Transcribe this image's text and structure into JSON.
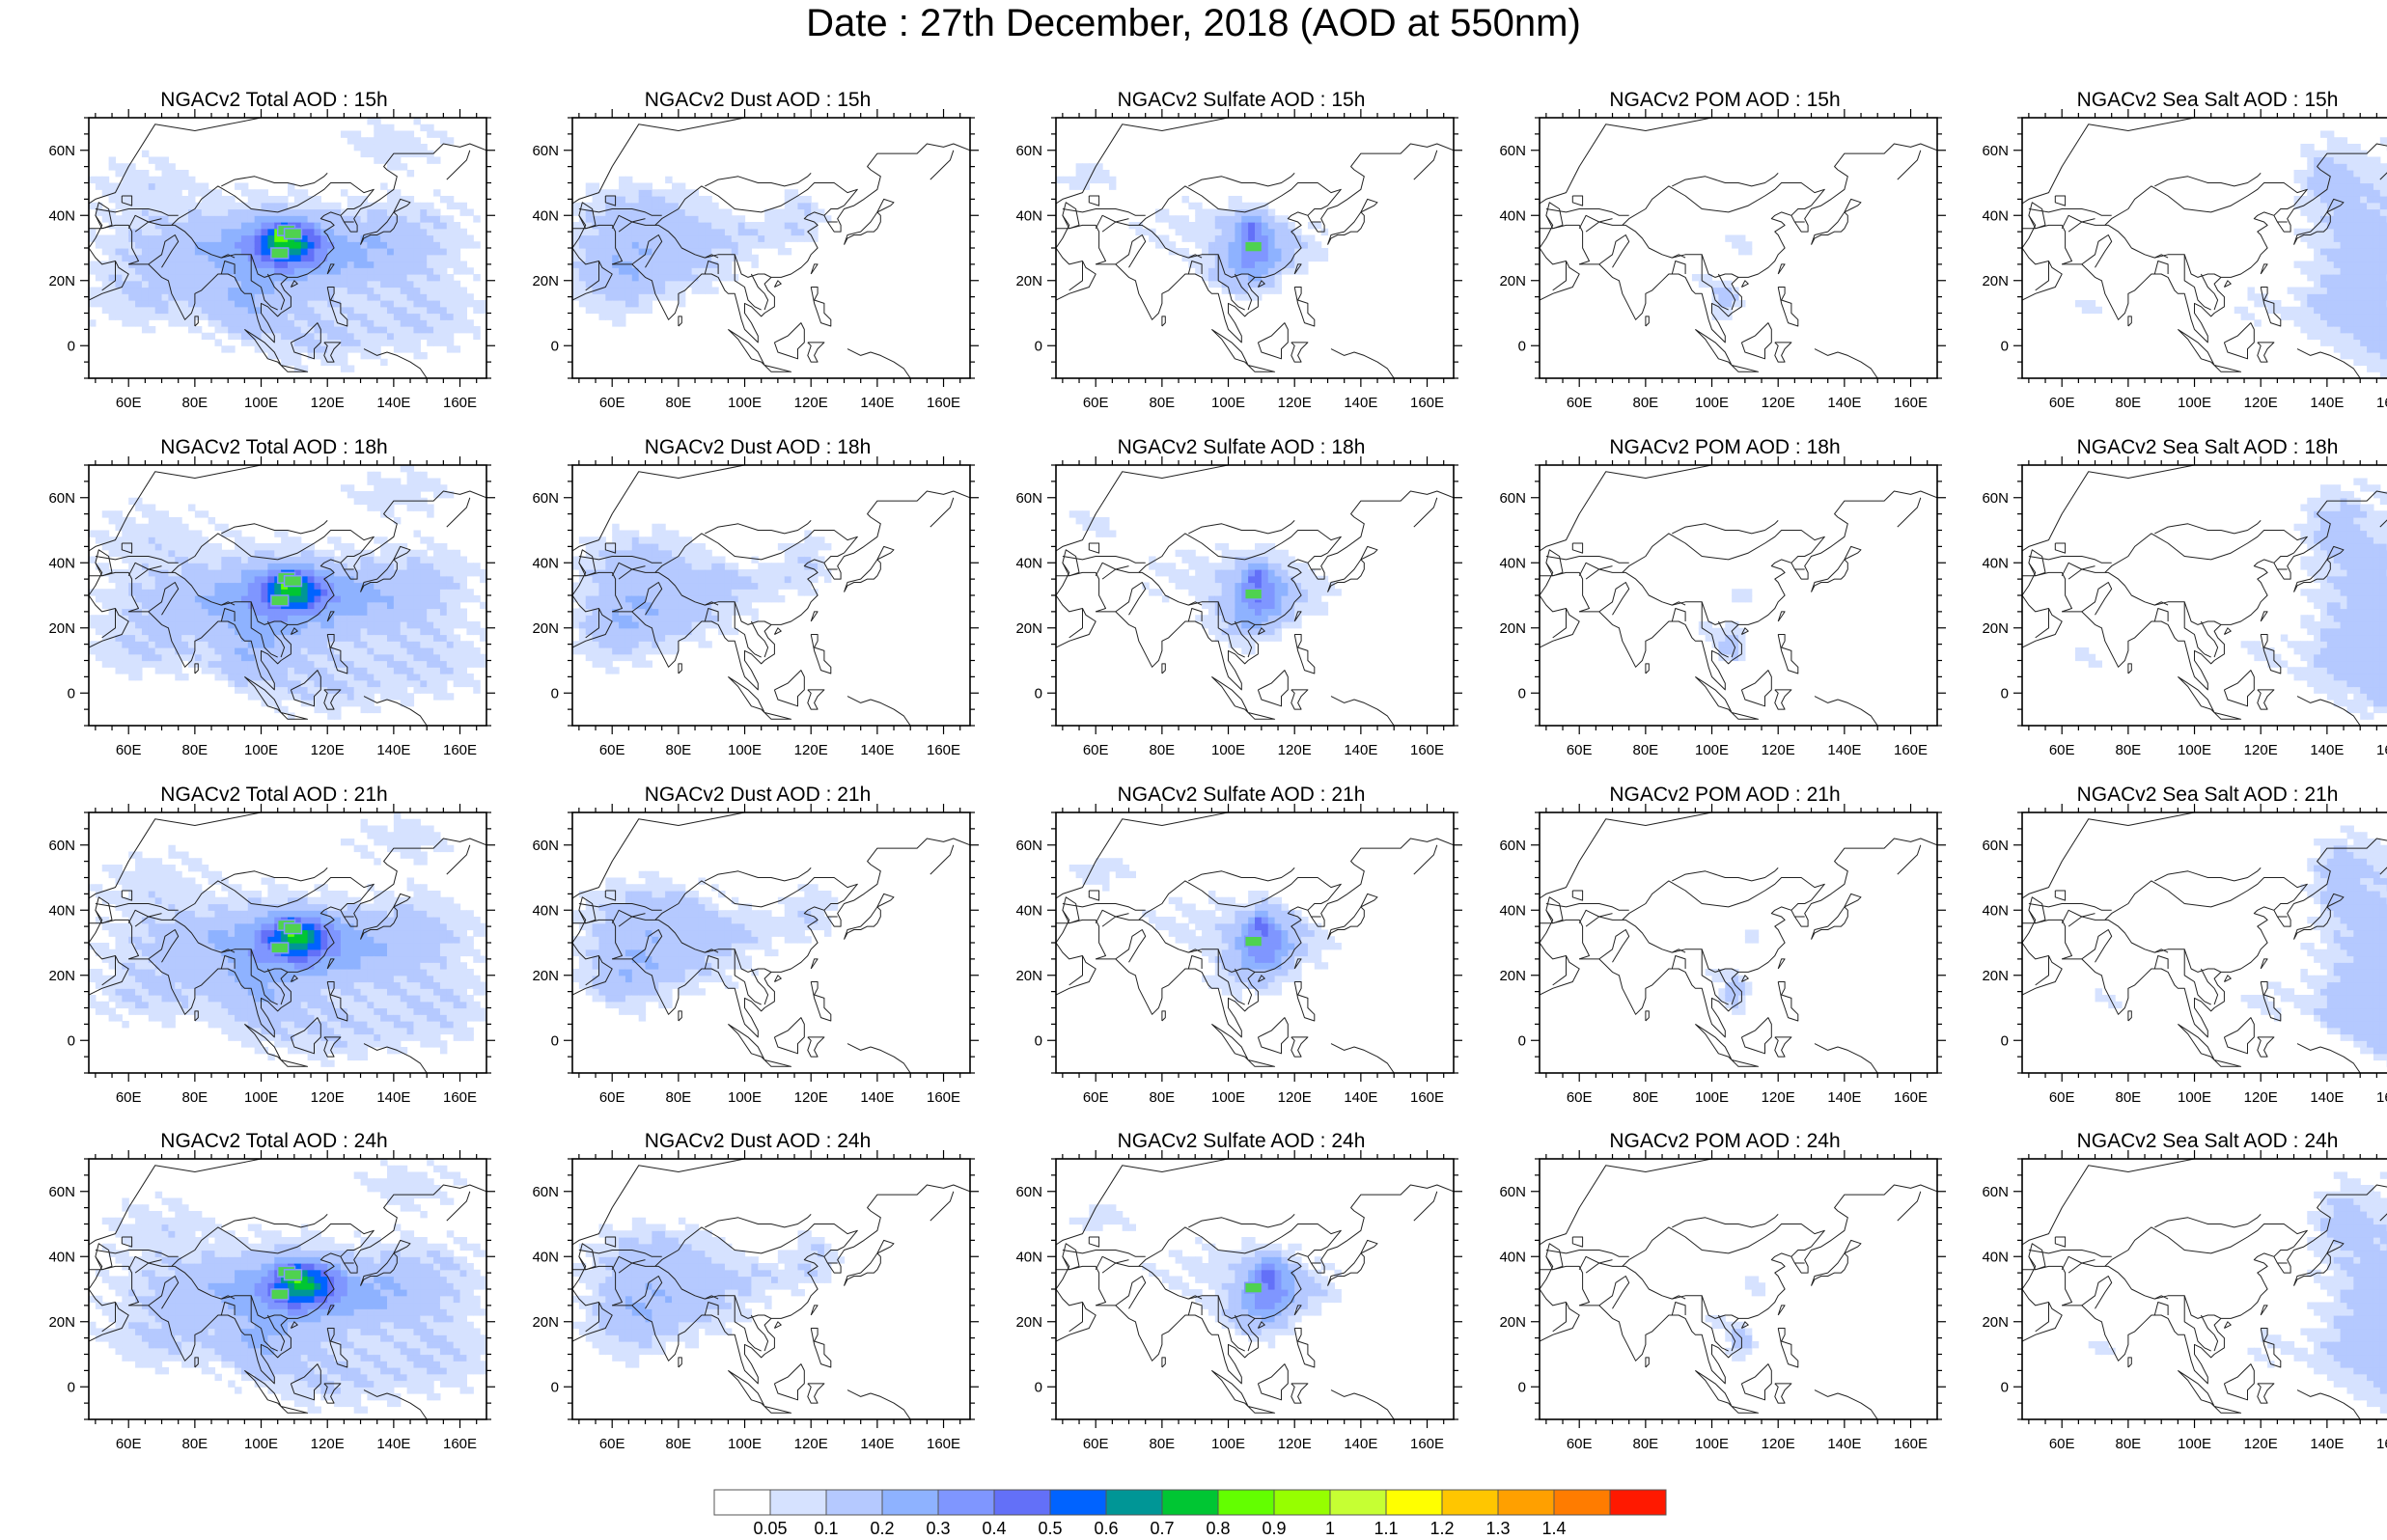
{
  "title": "Date : 27th December, 2018 (AOD at 550nm)",
  "map": {
    "lon_ticks": [
      "60E",
      "80E",
      "100E",
      "120E",
      "140E",
      "160E"
    ],
    "lat_ticks": [
      "60N",
      "40N",
      "20N",
      "0"
    ],
    "lon_range": [
      48,
      168
    ],
    "lat_range": [
      -10,
      70
    ]
  },
  "panels": [
    {
      "title": "NGACv2 Total AOD : 15h",
      "field": "total",
      "hour": "15h"
    },
    {
      "title": "NGACv2 Dust AOD : 15h",
      "field": "dust",
      "hour": "15h"
    },
    {
      "title": "NGACv2 Sulfate AOD : 15h",
      "field": "sulfate",
      "hour": "15h"
    },
    {
      "title": "NGACv2 POM AOD : 15h",
      "field": "pom",
      "hour": "15h"
    },
    {
      "title": "NGACv2 Sea Salt AOD : 15h",
      "field": "seasalt",
      "hour": "15h"
    },
    {
      "title": "NGACv2 Total AOD : 18h",
      "field": "total",
      "hour": "18h"
    },
    {
      "title": "NGACv2 Dust AOD : 18h",
      "field": "dust",
      "hour": "18h"
    },
    {
      "title": "NGACv2 Sulfate AOD : 18h",
      "field": "sulfate",
      "hour": "18h"
    },
    {
      "title": "NGACv2 POM AOD : 18h",
      "field": "pom",
      "hour": "18h"
    },
    {
      "title": "NGACv2 Sea Salt AOD : 18h",
      "field": "seasalt",
      "hour": "18h"
    },
    {
      "title": "NGACv2 Total AOD : 21h",
      "field": "total",
      "hour": "21h"
    },
    {
      "title": "NGACv2 Dust AOD : 21h",
      "field": "dust",
      "hour": "21h"
    },
    {
      "title": "NGACv2 Sulfate AOD : 21h",
      "field": "sulfate",
      "hour": "21h"
    },
    {
      "title": "NGACv2 POM AOD : 21h",
      "field": "pom",
      "hour": "21h"
    },
    {
      "title": "NGACv2 Sea Salt AOD : 21h",
      "field": "seasalt",
      "hour": "21h"
    },
    {
      "title": "NGACv2 Total AOD : 24h",
      "field": "total",
      "hour": "24h"
    },
    {
      "title": "NGACv2 Dust AOD : 24h",
      "field": "dust",
      "hour": "24h"
    },
    {
      "title": "NGACv2 Sulfate AOD : 24h",
      "field": "sulfate",
      "hour": "24h"
    },
    {
      "title": "NGACv2 POM AOD : 24h",
      "field": "pom",
      "hour": "24h"
    },
    {
      "title": "NGACv2 Sea Salt  AOD : 24h",
      "field": "seasalt",
      "hour": "24h"
    }
  ],
  "colorbar": {
    "labels": [
      "0.05",
      "0.1",
      "0.2",
      "0.3",
      "0.4",
      "0.5",
      "0.6",
      "0.7",
      "0.8",
      "0.9",
      "1",
      "1.1",
      "1.2",
      "1.3",
      "1.4"
    ],
    "colors": [
      "#ffffff",
      "#d6e2ff",
      "#b5c9ff",
      "#8eb2ff",
      "#7f96ff",
      "#6370f8",
      "#0063ff",
      "#009696",
      "#00c633",
      "#63ff00",
      "#96ff00",
      "#c6ff33",
      "#ffff00",
      "#ffc600",
      "#ffa000",
      "#ff7c00",
      "#ff1900"
    ]
  }
}
